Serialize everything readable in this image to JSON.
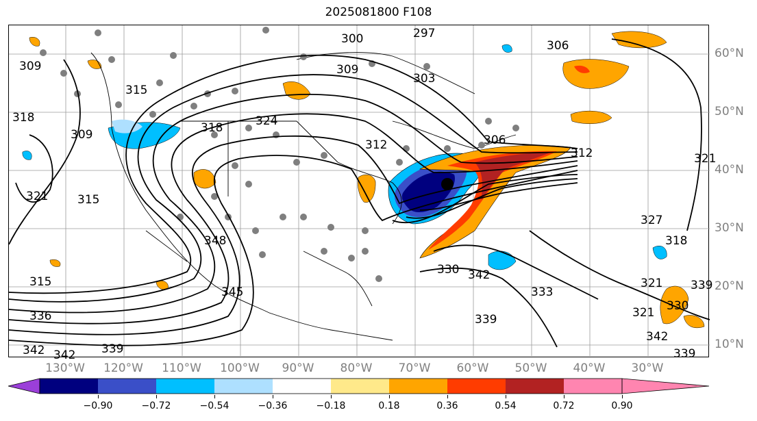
{
  "title": "2025081800 F108",
  "longitude_labels": [
    "130°W",
    "120°W",
    "110°W",
    "100°W",
    "90°W",
    "80°W",
    "70°W",
    "60°W",
    "50°W",
    "40°W",
    "30°W"
  ],
  "latitude_labels": [
    "60°N",
    "50°N",
    "40°N",
    "30°N",
    "20°N",
    "10°N"
  ],
  "contour_labels": [
    "297",
    "300",
    "303",
    "306",
    "306",
    "309",
    "309",
    "309",
    "312",
    "312",
    "315",
    "315",
    "315",
    "318",
    "318",
    "318",
    "321",
    "321",
    "321",
    "321",
    "324",
    "327",
    "330",
    "330",
    "333",
    "336",
    "339",
    "339",
    "339",
    "339",
    "342",
    "342",
    "342",
    "342",
    "345",
    "348"
  ],
  "colorbar": {
    "ticks": [
      "−0.90",
      "−0.72",
      "−0.54",
      "−0.36",
      "−0.18",
      "0.18",
      "0.36",
      "0.54",
      "0.72",
      "0.90"
    ],
    "colors": [
      "#9b3fd9",
      "#00007f",
      "#3a4fc8",
      "#00bfff",
      "#aee0ff",
      "#ffffff",
      "#ffe98a",
      "#ffa500",
      "#ff3c00",
      "#b22222",
      "#ff85b0"
    ]
  }
}
